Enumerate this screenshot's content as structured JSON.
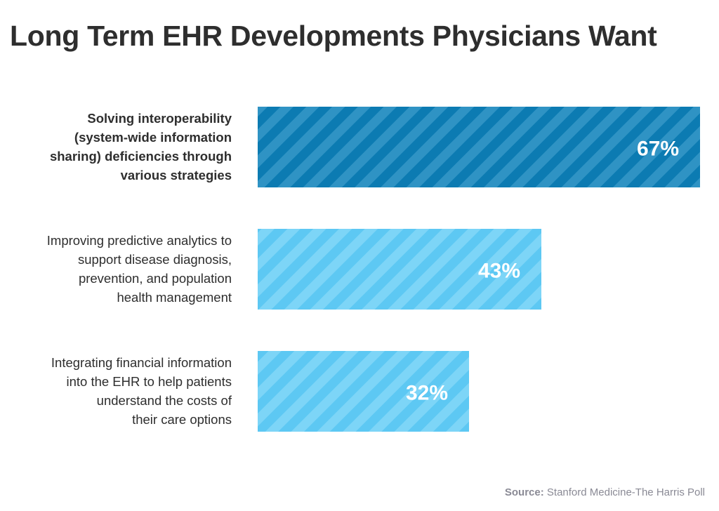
{
  "title": "Long Term EHR Developments Physicians Want",
  "chart_data": {
    "type": "bar",
    "orientation": "horizontal",
    "categories": [
      [
        "Solving interoperability",
        "(system-wide information",
        "sharing) deficiencies through",
        "various strategies"
      ],
      [
        "Improving predictive analytics to",
        "support disease diagnosis,",
        "prevention, and population",
        "health management"
      ],
      [
        "Integrating financial information",
        "into the EHR to help patients",
        "understand the costs of",
        "their care options"
      ]
    ],
    "values": [
      67,
      43,
      32
    ],
    "value_labels": [
      "67%",
      "43%",
      "32%"
    ],
    "highlight_index": 0,
    "xlim": [
      0,
      67
    ],
    "grid": false,
    "legend": "none"
  },
  "colors": {
    "highlight_bar": "#0c7bb2",
    "highlight_stripe": "#2f93c4",
    "bar": "#5dc8f3",
    "bar_stripe": "#7dd5f7",
    "label_text": "#2e2e2e",
    "value_text": "#ffffff"
  },
  "source": {
    "label": "Source:",
    "text": "Stanford Medicine-The Harris Poll"
  }
}
